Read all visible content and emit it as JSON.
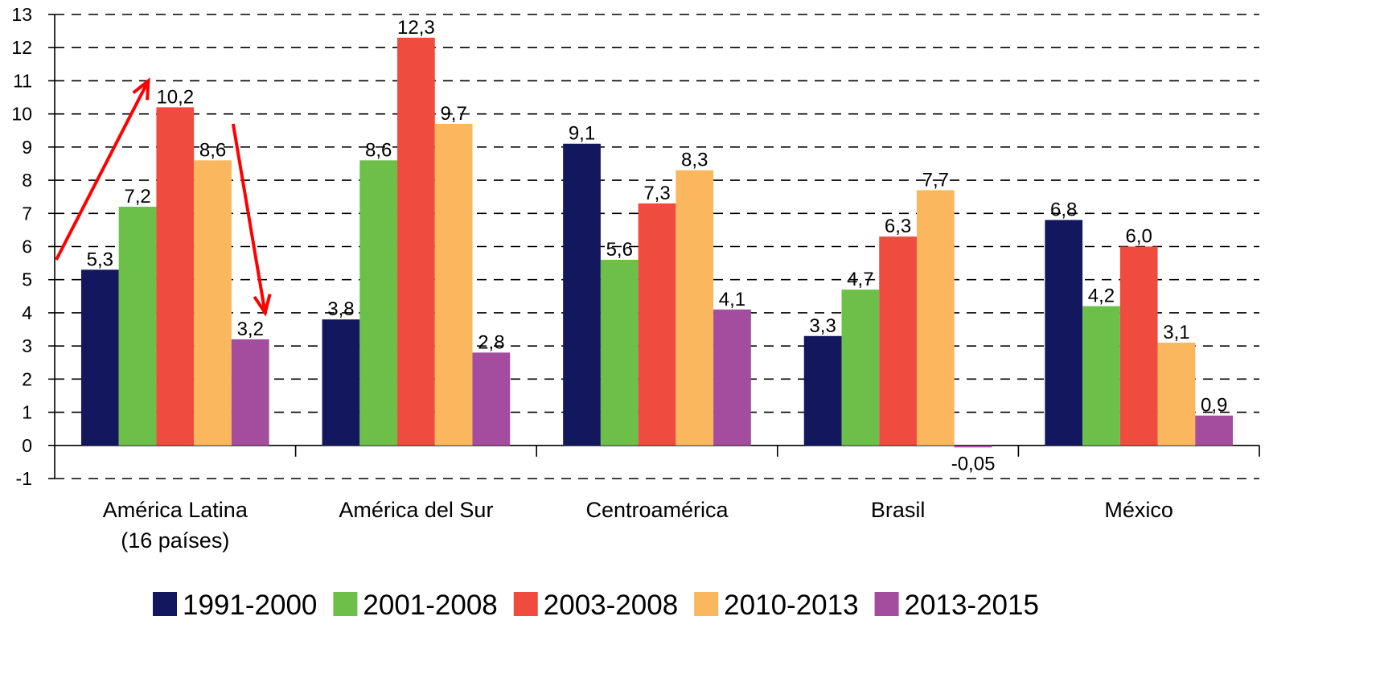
{
  "chart_data": {
    "type": "bar",
    "categories": [
      [
        "América Latina",
        "(16 países)"
      ],
      [
        "América del Sur"
      ],
      [
        "Centroamérica"
      ],
      [
        "Brasil"
      ],
      [
        "México"
      ]
    ],
    "series": [
      {
        "name": "1991-2000",
        "color": "#13185e",
        "values": [
          5.3,
          3.8,
          9.1,
          3.3,
          6.8
        ]
      },
      {
        "name": "2001-2008",
        "color": "#6cc04a",
        "values": [
          7.2,
          8.6,
          5.6,
          4.7,
          4.2
        ]
      },
      {
        "name": "2003-2008",
        "color": "#ef4b3f",
        "values": [
          10.2,
          12.3,
          7.3,
          6.3,
          6.0
        ]
      },
      {
        "name": "2010-2013",
        "color": "#fbb75d",
        "values": [
          8.6,
          9.7,
          8.3,
          7.7,
          3.1
        ]
      },
      {
        "name": "2013-2015",
        "color": "#a44c9e",
        "values": [
          3.2,
          2.8,
          4.1,
          -0.05,
          0.9
        ]
      }
    ],
    "data_labels": [
      [
        "5,3",
        "3,8",
        "9,1",
        "3,3",
        "6,8"
      ],
      [
        "7,2",
        "8,6",
        "5,6",
        "4,7",
        "4,2"
      ],
      [
        "10,2",
        "12,3",
        "7,3",
        "6,3",
        "6,0"
      ],
      [
        "8,6",
        "9,7",
        "8,3",
        "7,7",
        "3,1"
      ],
      [
        "3,2",
        "2,8",
        "4,1",
        "-0,05",
        "0,9"
      ]
    ],
    "ylim": [
      -1,
      13
    ],
    "yticks": [
      -1,
      0,
      1,
      2,
      3,
      4,
      5,
      6,
      7,
      8,
      9,
      10,
      11,
      12,
      13
    ],
    "grid": true,
    "legend_position": "bottom",
    "annotations": [
      {
        "type": "arrow",
        "color": "#ff0000",
        "direction": "up"
      },
      {
        "type": "arrow",
        "color": "#ff0000",
        "direction": "down"
      }
    ]
  }
}
